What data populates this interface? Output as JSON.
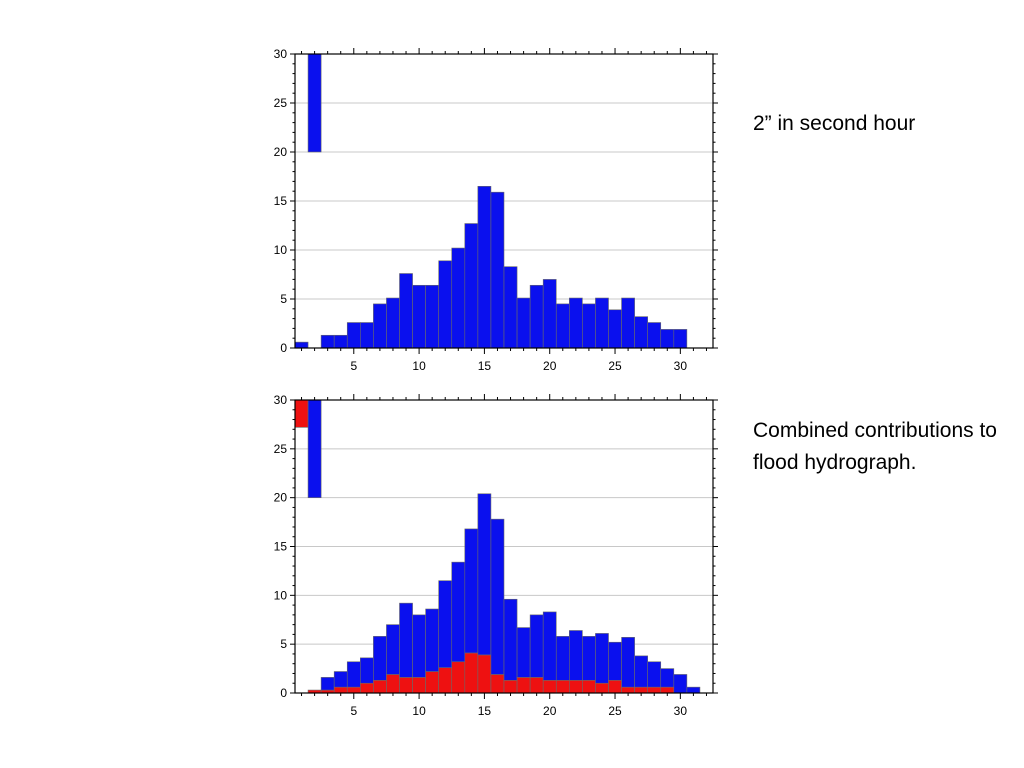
{
  "captions": {
    "top": "2” in second hour",
    "bottom": "Combined contributions to flood hydrograph."
  },
  "colors": {
    "blue": "#0a10ee",
    "red": "#ee1111",
    "grid": "#c8c8c8",
    "axis": "#000000"
  },
  "chart_data": [
    {
      "type": "bar",
      "x": [
        1,
        2,
        3,
        4,
        5,
        6,
        7,
        8,
        9,
        10,
        11,
        12,
        13,
        14,
        15,
        16,
        17,
        18,
        19,
        20,
        21,
        22,
        23,
        24,
        25,
        26,
        27,
        28,
        29,
        30,
        31
      ],
      "series": [
        {
          "color": "#0a10ee",
          "values": [
            0.6,
            30,
            1.3,
            1.3,
            2.6,
            2.6,
            4.5,
            5.1,
            7.6,
            6.4,
            6.4,
            8.9,
            10.2,
            12.7,
            16.5,
            15.9,
            8.3,
            5.1,
            6.4,
            7.0,
            4.5,
            5.1,
            4.5,
            5.1,
            3.9,
            5.1,
            3.2,
            2.6,
            1.9,
            1.9,
            0
          ]
        }
      ],
      "bar_top_clipped_at": 30,
      "bar_2_base": 20,
      "xlim": [
        0.5,
        32.5
      ],
      "ylim": [
        0,
        30
      ],
      "xticks": [
        5,
        10,
        15,
        20,
        25,
        30
      ],
      "yticks": [
        0,
        5,
        10,
        15,
        20,
        25,
        30
      ],
      "grid": true
    },
    {
      "type": "bar",
      "stacked": true,
      "x": [
        1,
        2,
        3,
        4,
        5,
        6,
        7,
        8,
        9,
        10,
        11,
        12,
        13,
        14,
        15,
        16,
        17,
        18,
        19,
        20,
        21,
        22,
        23,
        24,
        25,
        26,
        27,
        28,
        29,
        30,
        31
      ],
      "series": [
        {
          "color": "#ee1111",
          "values": [
            30,
            0.3,
            0.3,
            0.6,
            0.6,
            1.0,
            1.3,
            1.9,
            1.6,
            1.6,
            2.2,
            2.6,
            3.2,
            4.1,
            3.9,
            1.9,
            1.3,
            1.6,
            1.6,
            1.3,
            1.3,
            1.3,
            1.3,
            1.0,
            1.3,
            0.6,
            0.6,
            0.6,
            0.6,
            0,
            0
          ]
        },
        {
          "color": "#0a10ee",
          "values": [
            0,
            30,
            1.3,
            1.6,
            2.6,
            2.6,
            4.5,
            5.1,
            7.6,
            6.4,
            6.4,
            8.9,
            10.2,
            12.7,
            16.5,
            15.9,
            8.3,
            5.1,
            6.4,
            7.0,
            4.5,
            5.1,
            4.5,
            5.1,
            3.9,
            5.1,
            3.2,
            2.6,
            1.9,
            1.9,
            0.6
          ]
        }
      ],
      "bar_1_red_base": 27.2,
      "bar_2_blue_base": 20,
      "xlim": [
        0.5,
        32.5
      ],
      "ylim": [
        0,
        30
      ],
      "xticks": [
        5,
        10,
        15,
        20,
        25,
        30
      ],
      "yticks": [
        0,
        5,
        10,
        15,
        20,
        25,
        30
      ],
      "grid": true
    }
  ]
}
